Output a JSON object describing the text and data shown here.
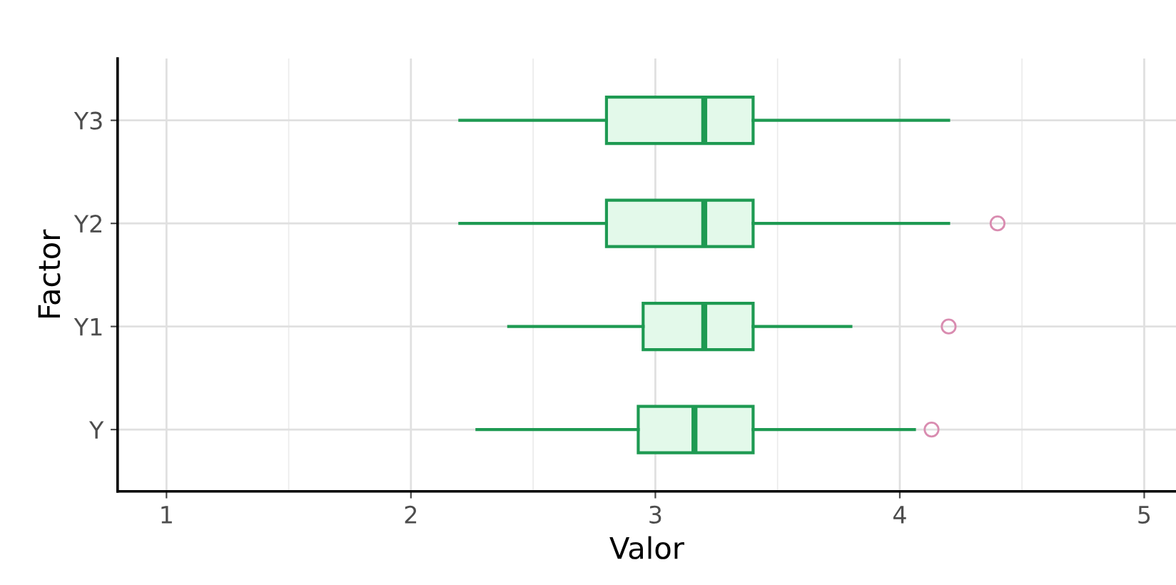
{
  "chart_data": {
    "type": "box",
    "orientation": "horizontal",
    "xlabel": "Valor",
    "ylabel": "Factor",
    "categories": [
      "Y3",
      "Y2",
      "Y1",
      "Y"
    ],
    "series": [
      {
        "color": "#1e9a52",
        "boxes": [
          {
            "low": 2.2,
            "q1": 2.8,
            "median": 3.2,
            "q3": 3.4,
            "high": 4.2
          },
          {
            "low": 2.2,
            "q1": 2.8,
            "median": 3.2,
            "q3": 3.4,
            "high": 4.2,
            "outliers": [
              4.4
            ]
          },
          {
            "low": 2.4,
            "q1": 2.95,
            "median": 3.2,
            "q3": 3.4,
            "high": 3.8,
            "outliers": [
              4.2
            ]
          },
          {
            "low": 2.27,
            "q1": 2.93,
            "median": 3.16,
            "q3": 3.4,
            "high": 4.06,
            "outliers": [
              4.13
            ]
          }
        ]
      }
    ],
    "xlim": [
      0.8,
      5.13
    ],
    "xticks": [
      1,
      2,
      3,
      4,
      5
    ],
    "grid": true
  }
}
